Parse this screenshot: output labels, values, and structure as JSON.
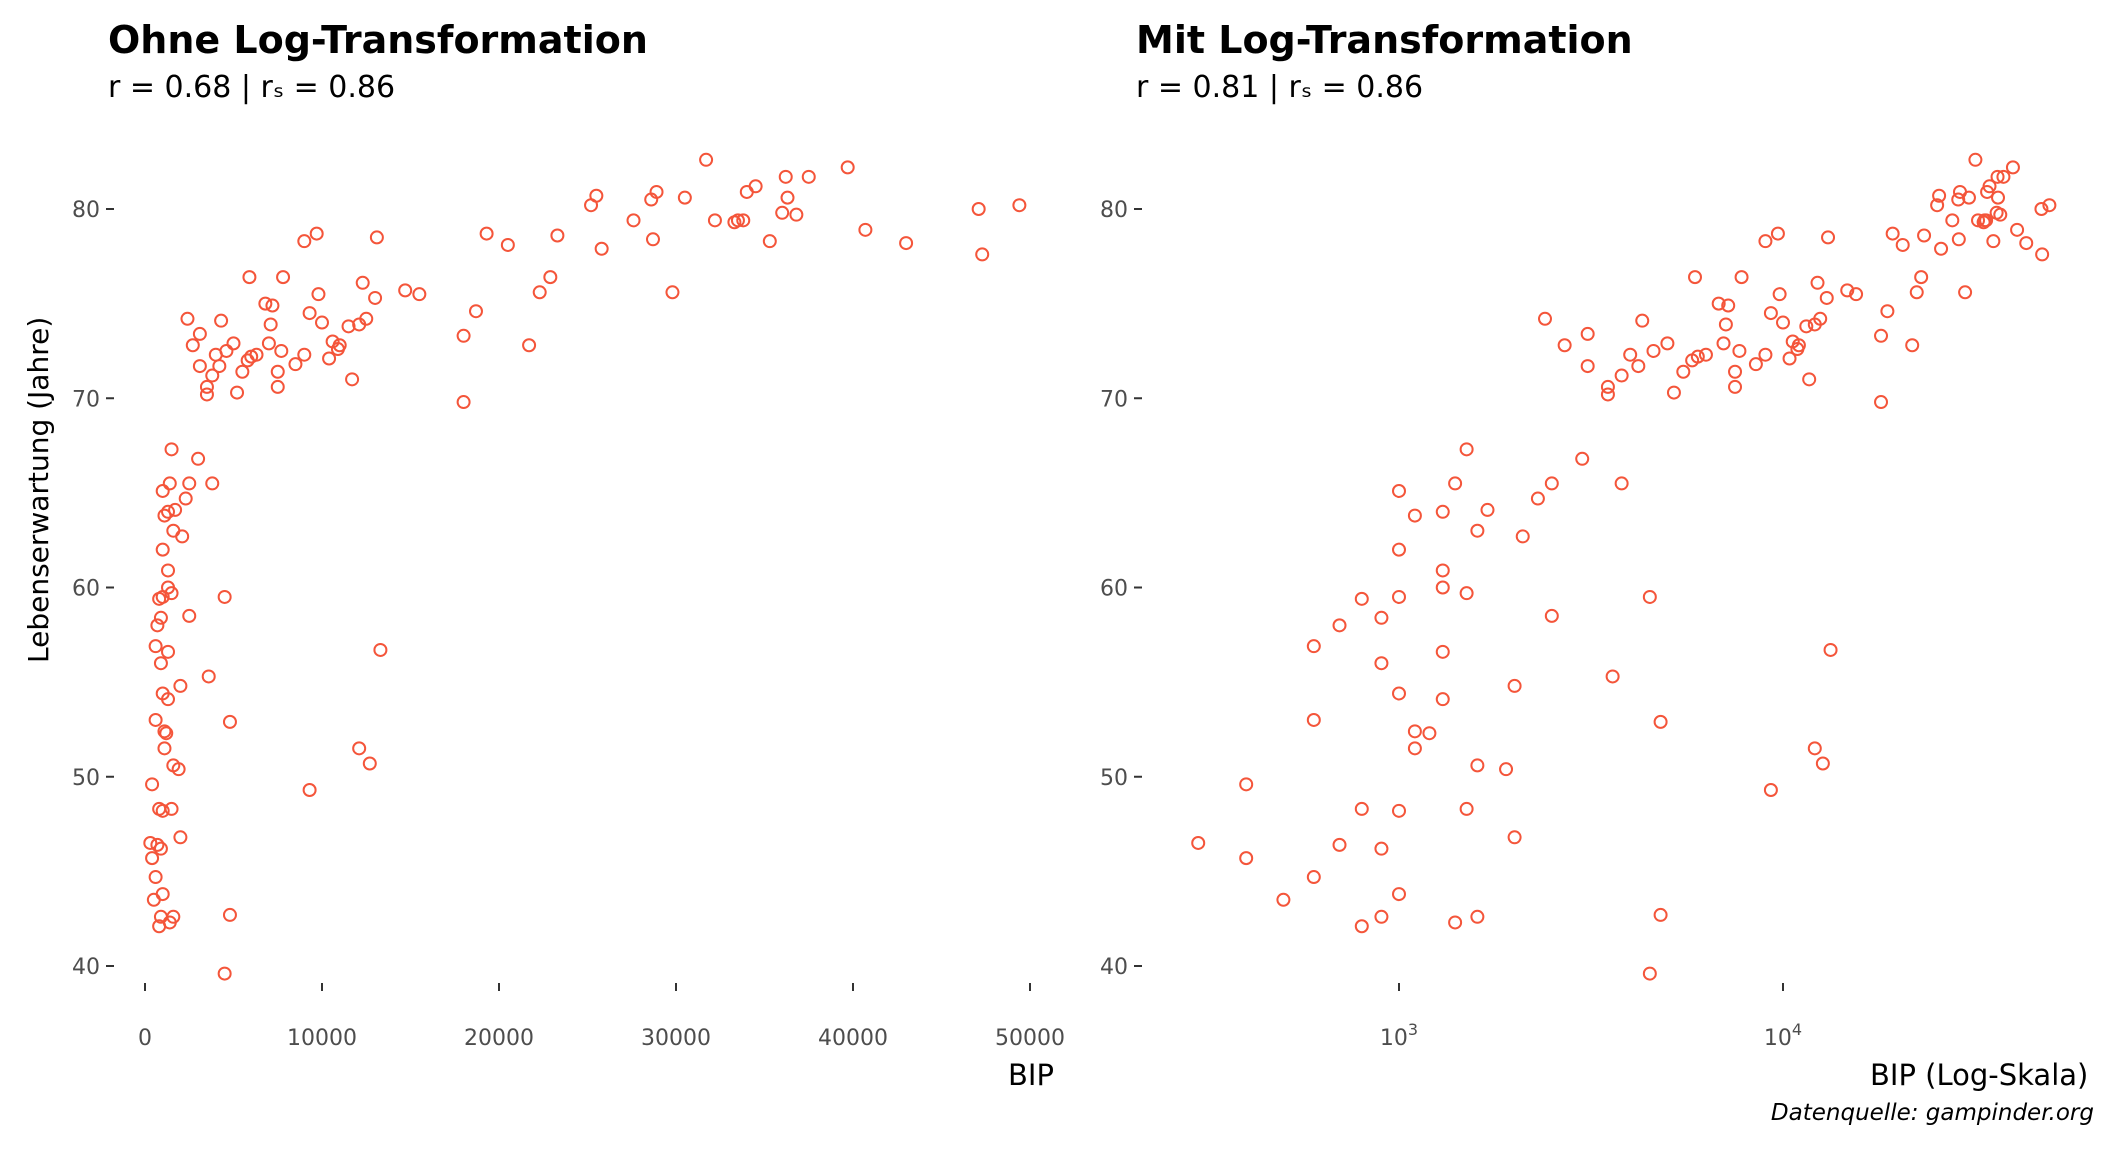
{
  "caption": "Datenquelle: gampinder.org",
  "y_axis_label": "Lebenserwartung (Jahre)",
  "colors": {
    "points": "#F4553A",
    "tick_text": "#4d4d4d"
  },
  "chart_data": [
    {
      "type": "scatter",
      "title": "Ohne Log-Transformation",
      "subtitle": "r =  0.68  | rₛ =  0.86",
      "xlabel": "BIP",
      "ylabel": "Lebenserwartung (Jahre)",
      "x_scale": "linear",
      "xlim": [
        -2000,
        52000
      ],
      "ylim": [
        38.5,
        84
      ],
      "x_ticks": [
        0,
        10000,
        20000,
        30000,
        40000,
        50000
      ],
      "x_tick_labels": [
        "0",
        "10000",
        "20000",
        "30000",
        "40000",
        "50000"
      ],
      "y_ticks": [
        40,
        50,
        60,
        70,
        80
      ],
      "y_tick_labels": [
        "40",
        "50",
        "60",
        "70",
        "80"
      ],
      "grid": false,
      "points_ref": "points"
    },
    {
      "type": "scatter",
      "title": "Mit Log-Transformation",
      "subtitle": "r =  0.81  | rₛ =  0.86",
      "xlabel": "BIP (Log-Skala)",
      "ylabel": "",
      "x_scale": "log10",
      "xlim": [
        250,
        55000
      ],
      "ylim": [
        38.5,
        84
      ],
      "x_ticks": [
        1000,
        10000
      ],
      "x_tick_labels": [
        [
          "10",
          "3"
        ],
        [
          "10",
          "4"
        ]
      ],
      "y_ticks": [
        40,
        50,
        60,
        70,
        80
      ],
      "y_tick_labels": [
        "40",
        "50",
        "60",
        "70",
        "80"
      ],
      "grid": false,
      "points_ref": "points"
    }
  ],
  "points": [
    [
      300,
      46.5
    ],
    [
      400,
      45.7
    ],
    [
      500,
      43.5
    ],
    [
      400,
      49.6
    ],
    [
      700,
      46.4
    ],
    [
      800,
      48.3
    ],
    [
      900,
      46.2
    ],
    [
      1000,
      43.8
    ],
    [
      800,
      42.1
    ],
    [
      900,
      42.6
    ],
    [
      600,
      44.7
    ],
    [
      1000,
      48.2
    ],
    [
      600,
      56.9
    ],
    [
      700,
      58.0
    ],
    [
      600,
      53.0
    ],
    [
      800,
      59.4
    ],
    [
      1000,
      59.5
    ],
    [
      900,
      58.4
    ],
    [
      900,
      56.0
    ],
    [
      1000,
      54.4
    ],
    [
      1100,
      52.4
    ],
    [
      1200,
      52.3
    ],
    [
      1100,
      51.5
    ],
    [
      1300,
      54.1
    ],
    [
      1300,
      56.6
    ],
    [
      1500,
      48.3
    ],
    [
      1600,
      50.6
    ],
    [
      1400,
      42.3
    ],
    [
      1600,
      42.6
    ],
    [
      1900,
      50.4
    ],
    [
      2000,
      46.8
    ],
    [
      1100,
      63.8
    ],
    [
      1000,
      65.1
    ],
    [
      1300,
      64.0
    ],
    [
      1400,
      65.5
    ],
    [
      1500,
      67.3
    ],
    [
      1600,
      63.0
    ],
    [
      1700,
      64.1
    ],
    [
      2100,
      62.7
    ],
    [
      1500,
      59.7
    ],
    [
      2000,
      54.8
    ],
    [
      1300,
      60.9
    ],
    [
      1000,
      62.0
    ],
    [
      1300,
      60.0
    ],
    [
      2500,
      58.5
    ],
    [
      2500,
      65.5
    ],
    [
      2300,
      64.7
    ],
    [
      2700,
      72.8
    ],
    [
      3100,
      71.7
    ],
    [
      3500,
      70.6
    ],
    [
      3500,
      70.2
    ],
    [
      3800,
      71.2
    ],
    [
      4000,
      72.3
    ],
    [
      4200,
      71.7
    ],
    [
      4600,
      72.5
    ],
    [
      4300,
      74.1
    ],
    [
      2400,
      74.2
    ],
    [
      3100,
      73.4
    ],
    [
      3000,
      66.8
    ],
    [
      3800,
      65.5
    ],
    [
      3600,
      55.3
    ],
    [
      4500,
      59.5
    ],
    [
      4800,
      52.9
    ],
    [
      4800,
      42.7
    ],
    [
      4500,
      39.6
    ],
    [
      5200,
      70.3
    ],
    [
      5500,
      71.4
    ],
    [
      5800,
      72.0
    ],
    [
      6000,
      72.2
    ],
    [
      6300,
      72.3
    ],
    [
      5000,
      72.9
    ],
    [
      5900,
      76.4
    ],
    [
      6800,
      75.0
    ],
    [
      7000,
      72.9
    ],
    [
      7100,
      73.9
    ],
    [
      7200,
      74.9
    ],
    [
      7500,
      71.4
    ],
    [
      7500,
      70.6
    ],
    [
      7700,
      72.5
    ],
    [
      7800,
      76.4
    ],
    [
      8500,
      71.8
    ],
    [
      9000,
      72.3
    ],
    [
      9300,
      74.5
    ],
    [
      9800,
      75.5
    ],
    [
      9700,
      78.7
    ],
    [
      9000,
      78.3
    ],
    [
      10000,
      74.0
    ],
    [
      10400,
      72.1
    ],
    [
      10600,
      73.0
    ],
    [
      10900,
      72.6
    ],
    [
      11000,
      72.8
    ],
    [
      11500,
      73.8
    ],
    [
      11700,
      71.0
    ],
    [
      12100,
      73.9
    ],
    [
      12300,
      76.1
    ],
    [
      12500,
      74.2
    ],
    [
      13000,
      75.3
    ],
    [
      13100,
      78.5
    ],
    [
      9300,
      49.3
    ],
    [
      12100,
      51.5
    ],
    [
      12700,
      50.7
    ],
    [
      13300,
      56.7
    ],
    [
      14700,
      75.7
    ],
    [
      15500,
      75.5
    ],
    [
      18000,
      69.8
    ],
    [
      18000,
      73.3
    ],
    [
      18700,
      74.6
    ],
    [
      19300,
      78.7
    ],
    [
      20500,
      78.1
    ],
    [
      21700,
      72.8
    ],
    [
      22300,
      75.6
    ],
    [
      22900,
      76.4
    ],
    [
      23300,
      78.6
    ],
    [
      25200,
      80.2
    ],
    [
      25500,
      80.7
    ],
    [
      25800,
      77.9
    ],
    [
      27600,
      79.4
    ],
    [
      28600,
      80.5
    ],
    [
      28700,
      78.4
    ],
    [
      28900,
      80.9
    ],
    [
      29800,
      75.6
    ],
    [
      30500,
      80.6
    ],
    [
      32200,
      79.4
    ],
    [
      31700,
      82.6
    ],
    [
      33300,
      79.3
    ],
    [
      33500,
      79.4
    ],
    [
      33800,
      79.4
    ],
    [
      34000,
      80.9
    ],
    [
      34500,
      81.2
    ],
    [
      35300,
      78.3
    ],
    [
      36000,
      79.8
    ],
    [
      36200,
      81.7
    ],
    [
      36300,
      80.6
    ],
    [
      36800,
      79.7
    ],
    [
      37500,
      81.7
    ],
    [
      39700,
      82.2
    ],
    [
      40700,
      78.9
    ],
    [
      43000,
      78.2
    ],
    [
      47100,
      80.0
    ],
    [
      47300,
      77.6
    ],
    [
      49400,
      80.2
    ]
  ]
}
